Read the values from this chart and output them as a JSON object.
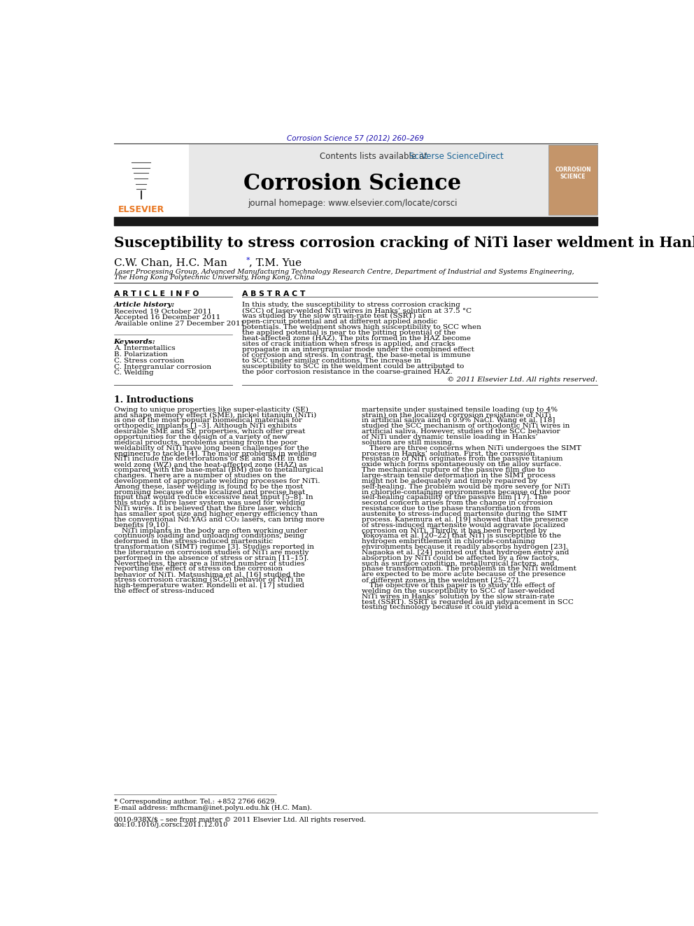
{
  "journal_ref": "Corrosion Science 57 (2012) 260–269",
  "journal_ref_color": "#1a0dab",
  "header_bg": "#e8e8e8",
  "contents_text": "Contents lists available at ",
  "sciverse_text": "SciVerse ScienceDirect",
  "sciverse_color": "#1a6496",
  "journal_name": "Corrosion Science",
  "journal_homepage": "journal homepage: www.elsevier.com/locate/corsci",
  "title": "Susceptibility to stress corrosion cracking of NiTi laser weldment in Hanks’ solution",
  "affiliation1": "Laser Processing Group, Advanced Manufacturing Technology Research Centre, Department of Industrial and Systems Engineering,",
  "affiliation2": "The Hong Kong Polytechnic University, Hong Kong, China",
  "article_info_title": "A R T I C L E  I N F O",
  "abstract_title": "A B S T R A C T",
  "article_history_label": "Article history:",
  "received": "Received 19 October 2011",
  "accepted": "Accepted 16 December 2011",
  "available": "Available online 27 December 2011",
  "keywords_label": "Keywords:",
  "keywords": [
    "A. Intermetallics",
    "B. Polarization",
    "C. Stress corrosion",
    "C. Intergranular corrosion",
    "C. Welding"
  ],
  "abstract_text": "In this study, the susceptibility to stress corrosion cracking (SCC) of laser-welded NiTi wires in Hanks’ solution at 37.5 °C was studied by the slow strain-rate test (SSRT) at open-circuit potential and at different applied anodic potentials. The weldment shows high susceptibility to SCC when the applied potential is near to the pitting potential of the heat-affected zone (HAZ). The pits formed in the HAZ become sites of crack initiation when stress is applied, and cracks propagate in an intergranular mode under the combined effect of corrosion and stress. In contrast, the base-metal is immune to SCC under similar conditions. The increase in susceptibility to SCC in the weldment could be attributed to the poor corrosion resistance in the coarse-grained HAZ.",
  "copyright_text": "© 2011 Elsevier Ltd. All rights reserved.",
  "section1_title": "1. Introductions",
  "section1_col1": "Owing to unique properties like super-elasticity (SE) and shape memory effect (SME), nickel titanium (NiTi) is one of the most popular biomedical materials for orthopedic implants [1–3]. Although NiTi exhibits desirable SME and SE properties, which offer great opportunities for the design of a variety of new medical products, problems arising from the poor weldability of NiTi have long been challenges for the engineers to tackle [4]. The major problems in welding NiTi include the deteriorations of SE and SME in the weld zone (WZ) and the heat-affected zone (HAZ) as compared with the base-metal (BM) due to metallurgical changes. There are a number of studies on the development of appropriate welding processes for NiTi. Among these, laser welding is found to be the most promising because of the localized and precise heat input that would reduce excessive heat input [5–8]. In this study a fibre laser system was used for welding NiTi wires. It is believed that the fibre laser, which has smaller spot size and higher energy efficiency than the conventional Nd:YAG and CO₂ lasers, can bring more benefits [9,10].\n    NiTi implants in the body are often working under continuous loading and unloading conditions, being deformed in the stress-induced martensitic transformation (SIMT) regime [3]. Studies reported in the literature on corrosion studies of NiTi are mostly performed in the absence of stress or strain [11–15]. Nevertheless, there are a limited number of studies reporting the effect of stress on the corrosion behavior of NiTi. Matsushima et al. [16] studied the stress corrosion cracking (SCC) behavior of NiTi in high-temperature water. Rondelli et al. [17] studied the effect of stress-induced",
  "section1_col2": "martensite under sustained tensile loading (up to 4% strain) on the localized corrosion resistance of NiTi in artificial saliva and in 0.9% NaCl. Wang et al. [18] studied the SCC mechanism of orthodontic NiTi wires in artificial saliva. However, studies of the SCC behavior of NiTi under dynamic tensile loading in Hanks’ solution are still missing.\n    There are three concerns when NiTi undergoes the SIMT process in Hanks’ solution. First, the corrosion resistance of NiTi originates from the passive titanium oxide which forms spontaneously on the alloy surface. The mechanical rupture of the passive film due to large-strain tensile deformation in the SIMT process might not be adequately and timely repaired by self-healing. The problem would be more severe for NiTi in chloride-containing environments because of the poor self-healing capability of the passive film [17]. The second concern arises from the change in corrosion resistance due to the phase transformation from austenite to stress-induced martensite during the SIMT process. Kanemura et al. [19] showed that the presence of stress-induced martensite would aggravate localized corrosion on NiTi. Thirdly, it has been reported by Yokoyama et al. [20–22] that NiTi is susceptible to the hydrogen embrittlement in chloride-containing environments because it readily absorbs hydrogen [23]. Nagaoka et al. [24] pointed out that hydrogen entry and absorption by NiTi could be affected by a few factors, such as surface condition, metallurgical factors, and phase transformation. The problems in the NiTi weldment are expected to be more acute because of the presence of different zones in the weldment [25–27].\n    The objective of this paper is to study the effect of welding on the susceptibility to SCC of laser-welded NiTi wires in Hanks’ solution by the slow strain-rate test (SSRT). SSRT is regarded as an advancement in SCC testing technology because it could yield a",
  "footer_left": "0010-938X/$ – see front matter © 2011 Elsevier Ltd. All rights reserved.",
  "footer_doi": "doi:10.1016/j.corsci.2011.12.010",
  "star_footnote": "* Corresponding author. Tel.: +852 2766 6629.",
  "email_footnote": "E-mail address: mfhcman@inet.polyu.edu.hk (H.C. Man).",
  "bg_color": "#ffffff",
  "text_color": "#000000",
  "thick_bar_color": "#1a1a1a",
  "elsevier_color": "#e87722"
}
